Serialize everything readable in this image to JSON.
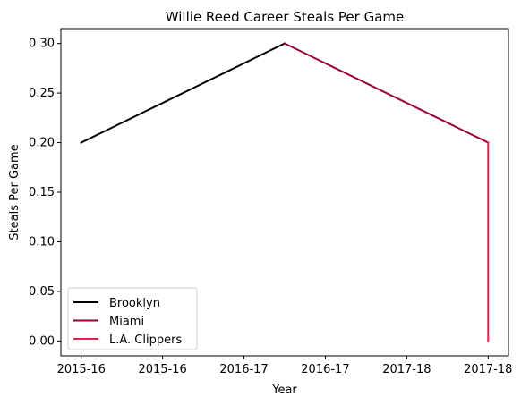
{
  "chart_data": {
    "type": "line",
    "title": "Willie Reed Career Steals Per Game",
    "xlabel": "Year",
    "ylabel": "Steals Per Game",
    "x_tick_labels": [
      "2015-16",
      "2015-16",
      "2016-17",
      "2016-17",
      "2017-18",
      "2017-18"
    ],
    "y_tick_labels": [
      "0.00",
      "0.05",
      "0.10",
      "0.15",
      "0.20",
      "0.25",
      "0.30"
    ],
    "x_tick_positions": [
      0,
      0.4,
      0.8,
      1.2,
      1.6,
      2.0
    ],
    "y_ticks": [
      0,
      0.05,
      0.1,
      0.15,
      0.2,
      0.25,
      0.3
    ],
    "xlim": [
      -0.1,
      2.1
    ],
    "ylim": [
      -0.015,
      0.315
    ],
    "legend_position": "lower-left",
    "grid": false,
    "series": [
      {
        "name": "Brooklyn",
        "color": "#000000",
        "points": [
          {
            "x": 0,
            "y": 0.2
          },
          {
            "x": 1,
            "y": 0.3
          }
        ]
      },
      {
        "name": "Miami",
        "color": "#98002e",
        "points": [
          {
            "x": 1,
            "y": 0.3
          },
          {
            "x": 2,
            "y": 0.2
          }
        ]
      },
      {
        "name": "L.A. Clippers",
        "color": "#e0224d",
        "points": [
          {
            "x": 2,
            "y": 0.2
          },
          {
            "x": 2,
            "y": 0.0
          }
        ]
      }
    ]
  }
}
